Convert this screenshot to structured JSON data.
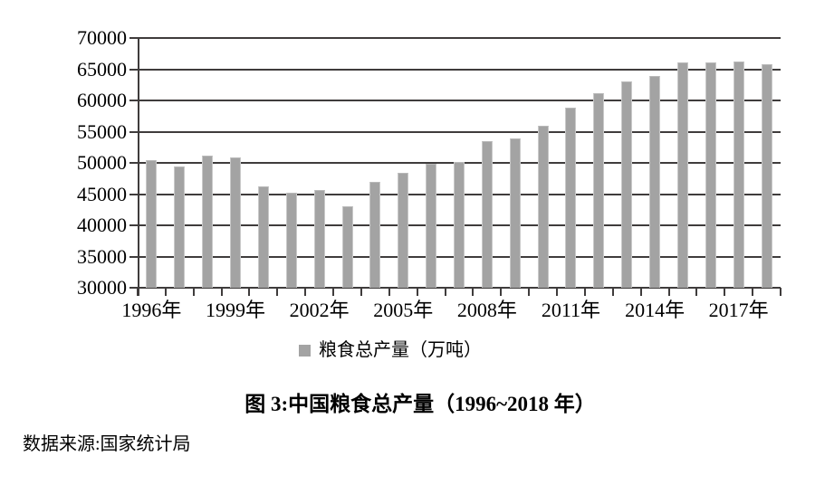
{
  "chart_data": {
    "type": "bar",
    "title": "图 3:中国粮食总产量（1996~2018 年）",
    "source": "数据来源:国家统计局",
    "legend_label": "粮食总产量（万吨）",
    "legend_position": "bottom",
    "categories": [
      "1996年",
      "1997年",
      "1998年",
      "1999年",
      "2000年",
      "2001年",
      "2002年",
      "2003年",
      "2004年",
      "2005年",
      "2006年",
      "2007年",
      "2008年",
      "2009年",
      "2010年",
      "2011年",
      "2012年",
      "2013年",
      "2014年",
      "2015年",
      "2016年",
      "2017年",
      "2018年"
    ],
    "values": [
      50454,
      49417,
      51230,
      50839,
      46218,
      45264,
      45706,
      43070,
      46947,
      48402,
      49804,
      50160,
      53434,
      53941,
      55911,
      58849,
      61223,
      63048,
      63965,
      66060,
      66044,
      66161,
      65789
    ],
    "ylim": [
      30000,
      70000
    ],
    "y_tick_step": 5000,
    "y_tick_labels": [
      "30000",
      "35000",
      "40000",
      "45000",
      "50000",
      "55000",
      "60000",
      "65000",
      "70000"
    ],
    "x_label_indices": [
      0,
      3,
      6,
      9,
      12,
      15,
      18,
      21
    ],
    "x_tick_labels_shown": [
      "1996年",
      "1999年",
      "2002年",
      "2005年",
      "2008年",
      "2011年",
      "2014年",
      "2017年"
    ],
    "xlabel": "",
    "ylabel": "",
    "grid": true,
    "bar_color": "#a3a3a3",
    "grid_color": "#3f3c3c",
    "text_color": "#000000"
  }
}
